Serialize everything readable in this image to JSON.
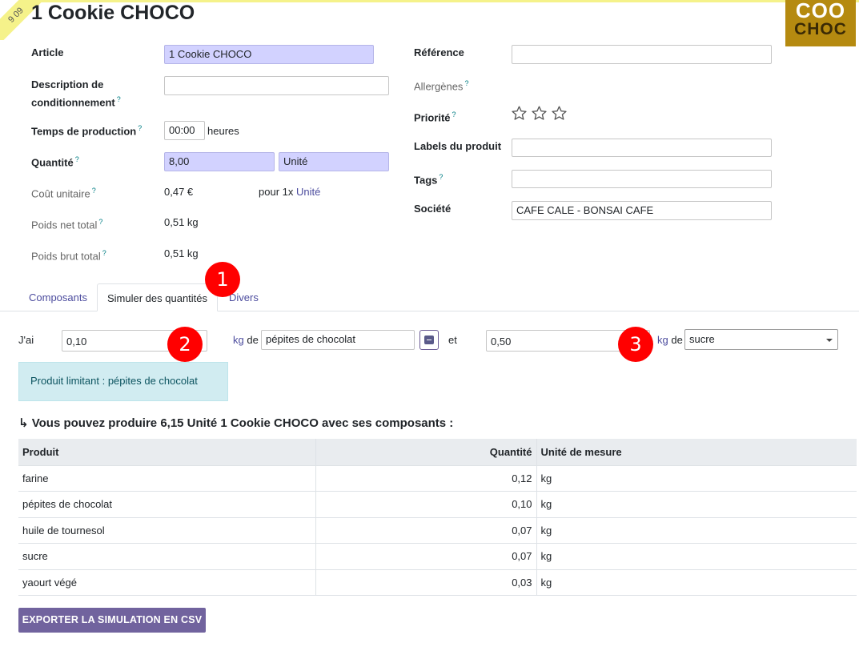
{
  "ribbon_text": "9 09",
  "title": "1 Cookie CHOCO",
  "logo": {
    "line1": "COO",
    "line2": "CHOC"
  },
  "left_fields": {
    "article_label": "Article",
    "article_value": "1 Cookie CHOCO",
    "description_label_1": "Description de",
    "description_label_2": "conditionnement",
    "description_value": "",
    "production_time_label": "Temps de production",
    "production_time_value": "00:00",
    "production_time_unit": "heures",
    "quantity_label": "Quantité",
    "quantity_value": "8,00",
    "quantity_uom": "Unité",
    "unit_cost_label": "Coût unitaire",
    "unit_cost_value": "0,47 €",
    "unit_cost_per": "pour 1x",
    "unit_cost_per_uom": "Unité",
    "net_weight_label": "Poids net total",
    "net_weight_value": "0,51 kg",
    "gross_weight_label": "Poids brut total",
    "gross_weight_value": "0,51 kg"
  },
  "right_fields": {
    "reference_label": "Référence",
    "reference_value": "",
    "allergens_label": "Allergènes",
    "priority_label": "Priorité",
    "priority_stars": 0,
    "labels_label": "Labels du produit",
    "labels_value": "",
    "tags_label": "Tags",
    "tags_value": "",
    "company_label": "Société",
    "company_value": "CAFE CALE - BONSAI CAFE"
  },
  "help_mark": "?",
  "tabs": [
    {
      "label": "Composants"
    },
    {
      "label": "Simuler des quantités"
    },
    {
      "label": "Divers"
    }
  ],
  "badges": [
    "1",
    "2",
    "3"
  ],
  "simulation": {
    "i_have": "J'ai",
    "qty1": "0,10",
    "uom1": "kg",
    "of1": "de",
    "product1": "pépites de chocolat",
    "and": "et",
    "qty2": "0,50",
    "uom2": "kg",
    "of2": "de",
    "product2": "sucre",
    "limiting_alert": "Produit limitant : pépites de chocolat"
  },
  "result": {
    "prefix": "↳ Vous pouvez produire",
    "amount": "6,15 Unité 1 Cookie CHOCO",
    "suffix": "avec ses composants :"
  },
  "table": {
    "headers": {
      "product": "Produit",
      "quantity": "Quantité",
      "uom": "Unité de mesure"
    },
    "rows": [
      {
        "product": "farine",
        "quantity": "0,12",
        "uom": "kg"
      },
      {
        "product": "pépites de chocolat",
        "quantity": "0,10",
        "uom": "kg"
      },
      {
        "product": "huile de tournesol",
        "quantity": "0,07",
        "uom": "kg"
      },
      {
        "product": "sucre",
        "quantity": "0,07",
        "uom": "kg"
      },
      {
        "product": "yaourt végé",
        "quantity": "0,03",
        "uom": "kg"
      }
    ]
  },
  "export_label": "EXPORTER LA SIMULATION EN CSV",
  "colors": {
    "primary": "#71639e",
    "required_field": "#d2d2ff",
    "badge": "#ff0000",
    "alert_bg": "#d1ecf1"
  }
}
